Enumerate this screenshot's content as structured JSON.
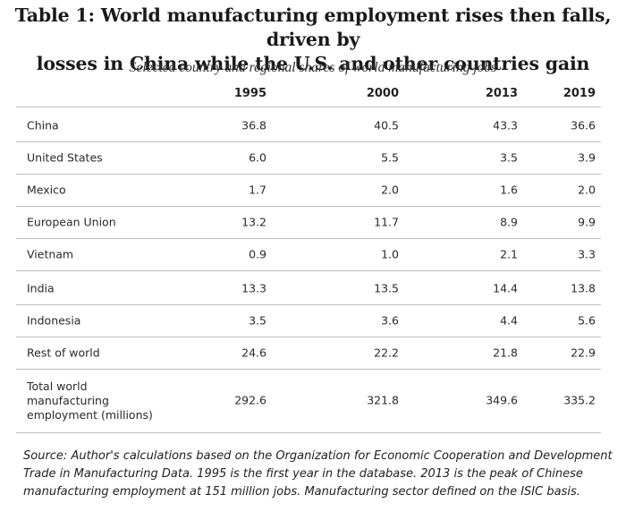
{
  "chart_data": {
    "type": "table",
    "title": "Table 1: World manufacturing employment rises then falls, driven by losses in China while the U.S. and other countries gain",
    "title_lines": [
      "Table 1: World manufacturing employment rises then falls, driven by",
      "losses in China while the U.S. and other countries gain"
    ],
    "subtitle": "Selected country and regional shares of world manufacturing jobs",
    "columns": [
      "1995",
      "2000",
      "2013",
      "2019"
    ],
    "rows": [
      {
        "label": [
          "China"
        ],
        "values": [
          "36.8",
          "40.5",
          "43.3",
          "36.6"
        ]
      },
      {
        "label": [
          "United States"
        ],
        "values": [
          "6.0",
          "5.5",
          "3.5",
          "3.9"
        ]
      },
      {
        "label": [
          "Mexico"
        ],
        "values": [
          "1.7",
          "2.0",
          "1.6",
          "2.0"
        ]
      },
      {
        "label": [
          "European Union"
        ],
        "values": [
          "13.2",
          "11.7",
          "8.9",
          "9.9"
        ]
      },
      {
        "label": [
          "Vietnam"
        ],
        "values": [
          "0.9",
          "1.0",
          "2.1",
          "3.3"
        ]
      },
      {
        "label": [
          "India"
        ],
        "values": [
          "13.3",
          "13.5",
          "14.4",
          "13.8"
        ]
      },
      {
        "label": [
          "Indonesia"
        ],
        "values": [
          "3.5",
          "3.6",
          "4.4",
          "5.6"
        ]
      },
      {
        "label": [
          "Rest of world"
        ],
        "values": [
          "24.6",
          "22.2",
          "21.8",
          "22.9"
        ]
      },
      {
        "label": [
          "Total world",
          "manufacturing",
          "employment (millions)"
        ],
        "values": [
          "292.6",
          "321.8",
          "349.6",
          "335.2"
        ]
      }
    ],
    "source": "Source: Author's calculations based on the Organization for Economic Cooperation and Development Trade in Manufacturing Data. 1995 is the first year in the database. 2013 is the peak of Chinese manufacturing employment at 151 million jobs. Manufacturing sector defined on the ISIC basis."
  }
}
